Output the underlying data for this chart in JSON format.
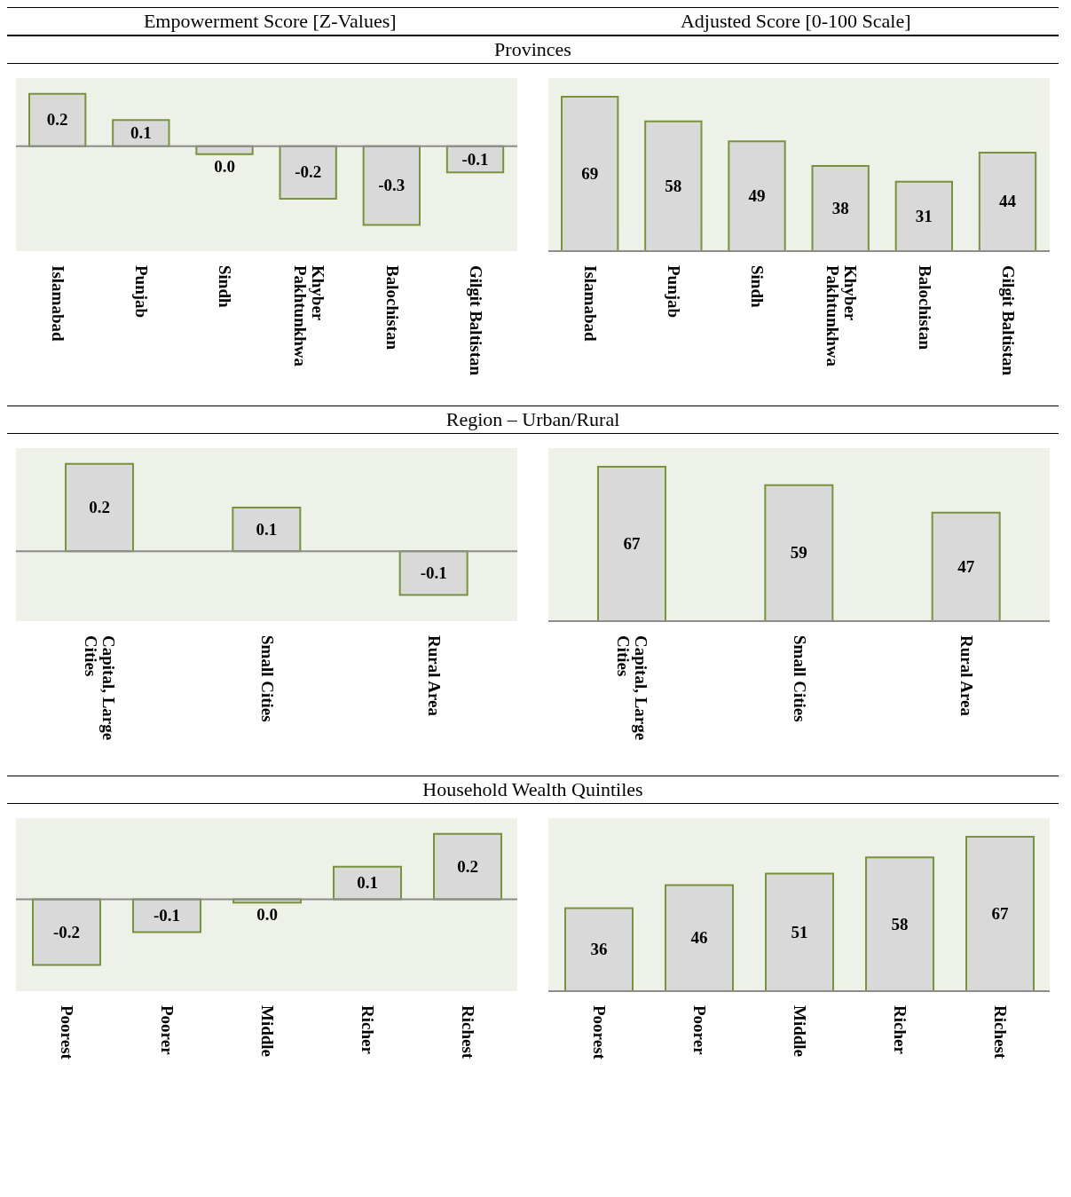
{
  "chart_data": [
    {
      "type": "bar",
      "title": "Empowerment Score [Z-Values]",
      "subtitle": "Provinces",
      "categories": [
        "Islamabad",
        "Punjab",
        "Sindh",
        "Khyber Pakhtunkhwa",
        "Balochistan",
        "Gilgit Baltistan"
      ],
      "values": [
        0.2,
        0.1,
        -0.03,
        -0.2,
        -0.3,
        -0.1
      ],
      "value_labels": [
        "0.2",
        "0.1",
        "0.0",
        "-0.2",
        "-0.3",
        "-0.1"
      ],
      "color": "#d9d9d9",
      "grid": false,
      "legend": false
    },
    {
      "type": "bar",
      "title": "Adjusted Score [0-100 Scale]",
      "categories": [
        "Islamabad",
        "Punjab",
        "Sindh",
        "Khyber Pakhtunkhwa",
        "Balochistan",
        "Gilgit Baltistan"
      ],
      "values": [
        69,
        58,
        49,
        38,
        31,
        44
      ],
      "data_labels": true,
      "color": "#d9d9d9",
      "grid": false,
      "legend": false
    },
    {
      "type": "bar",
      "subtitle": "Region – Urban/Rural",
      "categories": [
        "Capital, Large Cities",
        "Small Cities",
        "Rural Area"
      ],
      "values": [
        0.2,
        0.1,
        -0.1
      ],
      "value_labels": [
        "0.2",
        "0.1",
        "-0.1"
      ],
      "color": "#d9d9d9",
      "grid": false,
      "legend": false
    },
    {
      "type": "bar",
      "categories": [
        "Capital, Large Cities",
        "Small Cities",
        "Rural Area"
      ],
      "values": [
        67,
        59,
        47
      ],
      "data_labels": true,
      "color": "#d9d9d9",
      "grid": false,
      "legend": false
    },
    {
      "type": "bar",
      "subtitle": "Household Wealth Quintiles",
      "categories": [
        "Poorest",
        "Poorer",
        "Middle",
        "Richer",
        "Richest"
      ],
      "values": [
        -0.2,
        -0.1,
        -0.01,
        0.1,
        0.2
      ],
      "value_labels": [
        "-0.2",
        "-0.1",
        "0.0",
        "0.1",
        "0.2"
      ],
      "color": "#d9d9d9",
      "grid": false,
      "legend": false
    },
    {
      "type": "bar",
      "categories": [
        "Poorest",
        "Poorer",
        "Middle",
        "Richer",
        "Richest"
      ],
      "values": [
        36,
        46,
        51,
        58,
        67
      ],
      "data_labels": true,
      "color": "#d9d9d9",
      "grid": false,
      "legend": false
    }
  ]
}
